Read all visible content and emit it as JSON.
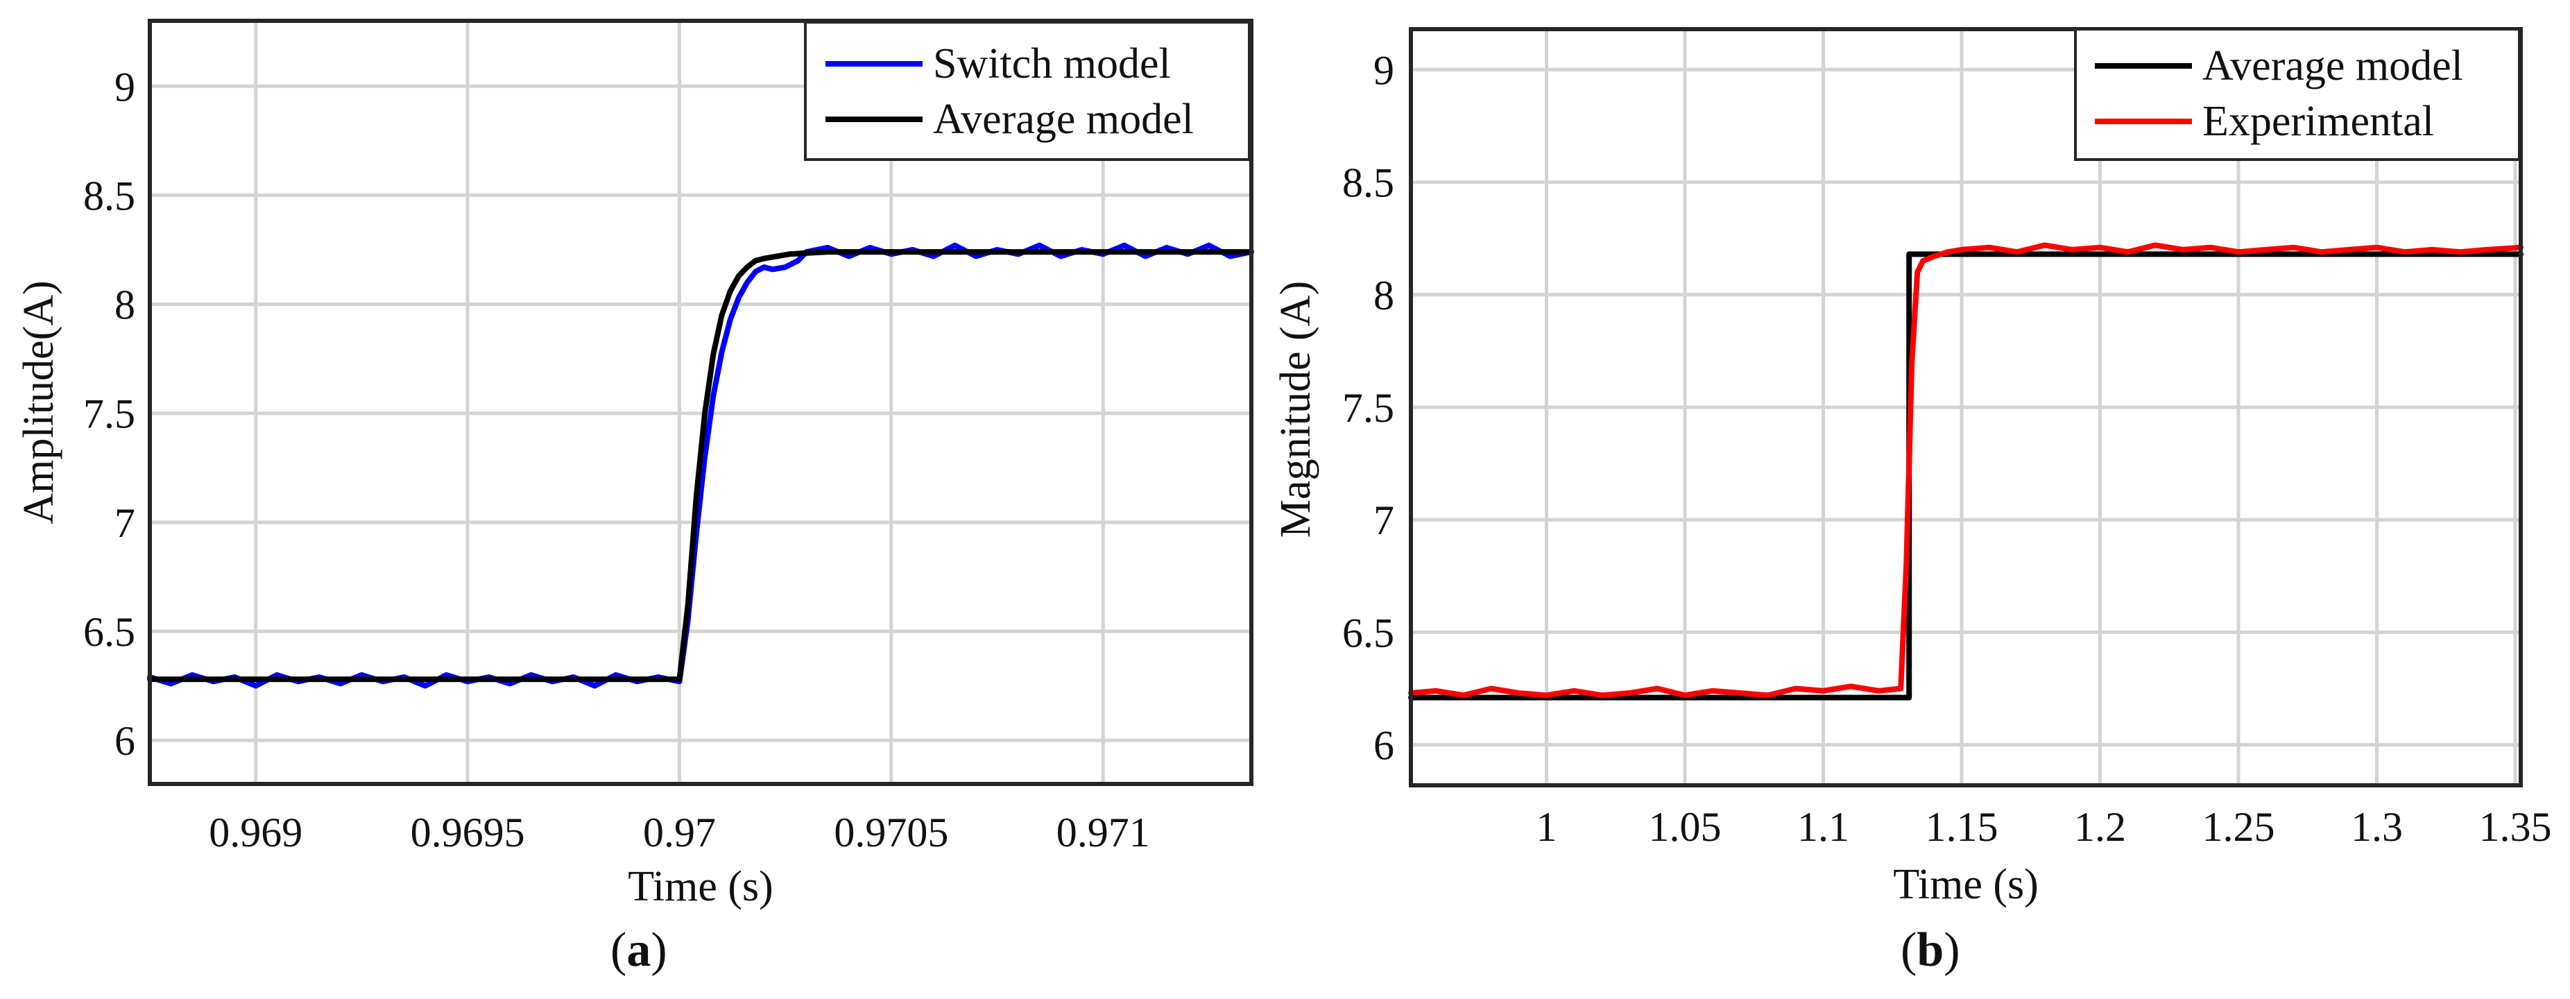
{
  "chart_data": [
    {
      "type": "line",
      "panel_label": "a",
      "xlabel": "Time (s)",
      "ylabel": "Amplitude(A)",
      "xlim": [
        0.96875,
        0.97135
      ],
      "ylim": [
        5.8,
        9.3
      ],
      "xticks": [
        0.969,
        0.9695,
        0.97,
        0.9705,
        0.971
      ],
      "xtick_labels": [
        "0.969",
        "0.9695",
        "0.97",
        "0.9705",
        "0.971"
      ],
      "yticks": [
        6,
        6.5,
        7,
        7.5,
        8,
        8.5,
        9
      ],
      "ytick_labels": [
        "6",
        "6.5",
        "7",
        "7.5",
        "8",
        "8.5",
        "9"
      ],
      "grid": true,
      "legend_position": "top-right",
      "series": [
        {
          "name": "Switch model",
          "color": "#0000ff",
          "x": [
            0.96875,
            0.9688,
            0.96885,
            0.9689,
            0.96895,
            0.969,
            0.96905,
            0.9691,
            0.96915,
            0.9692,
            0.96925,
            0.9693,
            0.96935,
            0.9694,
            0.96945,
            0.9695,
            0.96955,
            0.9696,
            0.96965,
            0.9697,
            0.96975,
            0.9698,
            0.96985,
            0.9699,
            0.96995,
            0.97,
            0.97002,
            0.97004,
            0.97006,
            0.97008,
            0.9701,
            0.97012,
            0.97014,
            0.97016,
            0.97018,
            0.9702,
            0.97022,
            0.97025,
            0.97028,
            0.9703,
            0.97035,
            0.9704,
            0.97045,
            0.9705,
            0.97055,
            0.9706,
            0.97065,
            0.9707,
            0.97075,
            0.9708,
            0.97085,
            0.9709,
            0.97095,
            0.971,
            0.97105,
            0.9711,
            0.97115,
            0.9712,
            0.97125,
            0.9713,
            0.97135
          ],
          "y": [
            6.29,
            6.26,
            6.3,
            6.27,
            6.29,
            6.25,
            6.3,
            6.27,
            6.29,
            6.26,
            6.3,
            6.27,
            6.29,
            6.25,
            6.3,
            6.27,
            6.29,
            6.26,
            6.3,
            6.27,
            6.29,
            6.25,
            6.3,
            6.27,
            6.29,
            6.27,
            6.55,
            6.95,
            7.3,
            7.58,
            7.78,
            7.93,
            8.03,
            8.1,
            8.15,
            8.17,
            8.16,
            8.17,
            8.2,
            8.24,
            8.26,
            8.22,
            8.26,
            8.23,
            8.25,
            8.22,
            8.27,
            8.22,
            8.25,
            8.23,
            8.27,
            8.22,
            8.25,
            8.23,
            8.27,
            8.22,
            8.26,
            8.23,
            8.27,
            8.22,
            8.24
          ]
        },
        {
          "name": "Average model",
          "color": "#000000",
          "x": [
            0.96875,
            0.969,
            0.9695,
            0.96999,
            0.97,
            0.97002,
            0.97004,
            0.97006,
            0.97008,
            0.9701,
            0.97012,
            0.97014,
            0.97016,
            0.97018,
            0.9702,
            0.97023,
            0.97026,
            0.9703,
            0.97035,
            0.9704,
            0.9706,
            0.9708,
            0.971,
            0.9712,
            0.97135
          ],
          "y": [
            6.28,
            6.28,
            6.28,
            6.28,
            6.28,
            6.62,
            7.12,
            7.5,
            7.77,
            7.95,
            8.06,
            8.13,
            8.17,
            8.2,
            8.21,
            8.22,
            8.23,
            8.235,
            8.24,
            8.24,
            8.24,
            8.24,
            8.24,
            8.24,
            8.24
          ]
        }
      ]
    },
    {
      "type": "line",
      "panel_label": "b",
      "xlabel": "Time (s)",
      "ylabel": "Magnitude (A)",
      "xlim": [
        0.951,
        1.352
      ],
      "ylim": [
        5.82,
        9.18
      ],
      "xticks": [
        1,
        1.05,
        1.1,
        1.15,
        1.2,
        1.25,
        1.3,
        1.35
      ],
      "xtick_labels": [
        "1",
        "1.05",
        "1.1",
        "1.15",
        "1.2",
        "1.25",
        "1.3",
        "1.35"
      ],
      "yticks": [
        6,
        6.5,
        7,
        7.5,
        8,
        8.5,
        9
      ],
      "ytick_labels": [
        "6",
        "6.5",
        "7",
        "7.5",
        "8",
        "8.5",
        "9"
      ],
      "grid": true,
      "legend_position": "top-right",
      "series": [
        {
          "name": "Average model",
          "color": "#000000",
          "x": [
            0.951,
            1.131,
            1.131,
            1.352
          ],
          "y": [
            6.21,
            6.21,
            8.18,
            8.18
          ]
        },
        {
          "name": "Experimental",
          "color": "#ff0000",
          "x": [
            0.951,
            0.96,
            0.97,
            0.98,
            0.99,
            1.0,
            1.01,
            1.02,
            1.03,
            1.04,
            1.05,
            1.06,
            1.07,
            1.08,
            1.09,
            1.1,
            1.11,
            1.12,
            1.128,
            1.13,
            1.132,
            1.134,
            1.136,
            1.14,
            1.145,
            1.15,
            1.16,
            1.17,
            1.18,
            1.19,
            1.2,
            1.21,
            1.22,
            1.23,
            1.24,
            1.25,
            1.26,
            1.27,
            1.28,
            1.29,
            1.3,
            1.31,
            1.32,
            1.33,
            1.34,
            1.352
          ],
          "y": [
            6.23,
            6.24,
            6.22,
            6.25,
            6.23,
            6.22,
            6.24,
            6.22,
            6.23,
            6.25,
            6.22,
            6.24,
            6.23,
            6.22,
            6.25,
            6.24,
            6.26,
            6.24,
            6.25,
            6.8,
            7.7,
            8.1,
            8.15,
            8.17,
            8.19,
            8.2,
            8.21,
            8.19,
            8.22,
            8.2,
            8.21,
            8.19,
            8.22,
            8.2,
            8.21,
            8.19,
            8.2,
            8.21,
            8.19,
            8.2,
            8.21,
            8.19,
            8.2,
            8.19,
            8.2,
            8.21
          ]
        }
      ]
    }
  ]
}
